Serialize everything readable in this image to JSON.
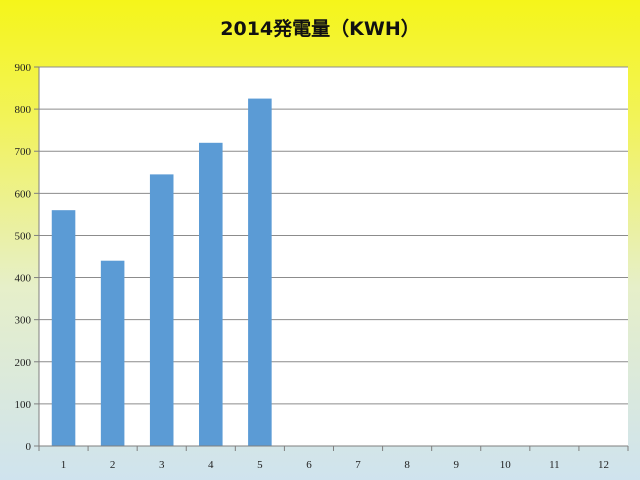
{
  "chart_data": {
    "type": "bar",
    "title": "2014発電量（KWH）",
    "xlabel": "",
    "ylabel": "",
    "categories": [
      "1",
      "2",
      "3",
      "4",
      "5",
      "6",
      "7",
      "8",
      "9",
      "10",
      "11",
      "12"
    ],
    "values": [
      560,
      440,
      645,
      720,
      825,
      null,
      null,
      null,
      null,
      null,
      null,
      null
    ],
    "ylim": [
      0,
      900
    ],
    "yticks": [
      0,
      100,
      200,
      300,
      400,
      500,
      600,
      700,
      800,
      900
    ],
    "grid": true,
    "legend": "none",
    "colors": {
      "bar": "#5b9bd5",
      "plot_bg": "#ffffff",
      "grid": "#8c8c8c"
    }
  }
}
